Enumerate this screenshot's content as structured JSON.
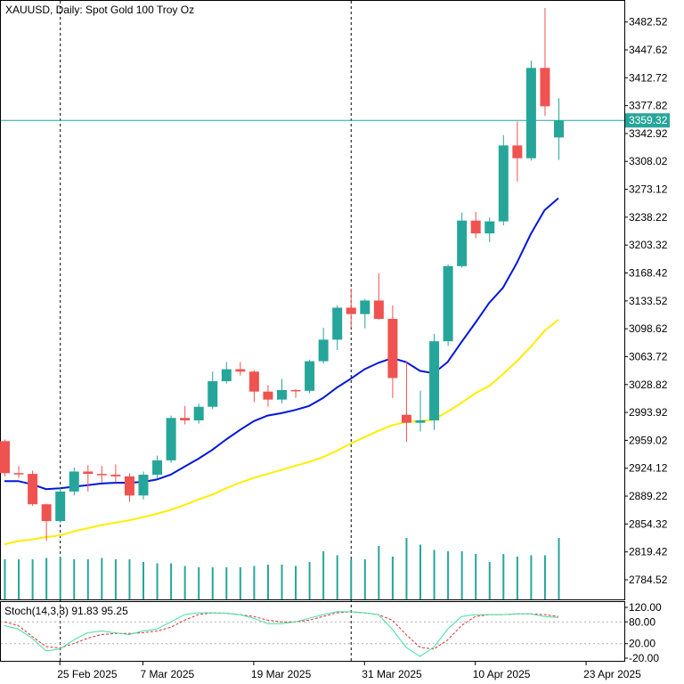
{
  "chart_data": {
    "type": "candlestick",
    "title": "XAUUSD, Daily:  Spot Gold 100 Troy Oz",
    "current_price_label": "3359.32",
    "current_price": 3359.32,
    "price_range": [
      2760,
      3510
    ],
    "price_ticks": [
      "3482.52",
      "3447.62",
      "3412.72",
      "3377.82",
      "3342.92",
      "3308.02",
      "3273.12",
      "3238.22",
      "3203.32",
      "3168.42",
      "3133.52",
      "3098.62",
      "3063.72",
      "3028.82",
      "2993.92",
      "2959.02",
      "2924.12",
      "2889.22",
      "2854.32",
      "2819.42",
      "2784.52"
    ],
    "price_tick_values": [
      3482.52,
      3447.62,
      3412.72,
      3377.82,
      3342.92,
      3308.02,
      3273.12,
      3238.22,
      3203.32,
      3168.42,
      3133.52,
      3098.62,
      3063.72,
      3028.82,
      2993.92,
      2959.02,
      2924.12,
      2889.22,
      2854.32,
      2819.42,
      2784.52
    ],
    "date_labels": [
      {
        "index": 4,
        "label": "25 Feb 2025"
      },
      {
        "index": 10,
        "label": "7 Mar 2025"
      },
      {
        "index": 18,
        "label": "19 Mar 2025"
      },
      {
        "index": 26,
        "label": "31 Mar 2025"
      },
      {
        "index": 34,
        "label": "10 Apr 2025"
      },
      {
        "index": 42,
        "label": "23 Apr 2025"
      }
    ],
    "separators": [
      4,
      25
    ],
    "candles": [
      {
        "o": 2958,
        "h": 2960,
        "l": 2914,
        "c": 2918
      },
      {
        "o": 2918,
        "h": 2927,
        "l": 2912,
        "c": 2917
      },
      {
        "o": 2917,
        "h": 2921,
        "l": 2877,
        "c": 2879
      },
      {
        "o": 2879,
        "h": 2880,
        "l": 2833,
        "c": 2858
      },
      {
        "o": 2858,
        "h": 2900,
        "l": 2856,
        "c": 2895
      },
      {
        "o": 2895,
        "h": 2925,
        "l": 2890,
        "c": 2920
      },
      {
        "o": 2920,
        "h": 2928,
        "l": 2895,
        "c": 2917
      },
      {
        "o": 2917,
        "h": 2927,
        "l": 2906,
        "c": 2916
      },
      {
        "o": 2916,
        "h": 2929,
        "l": 2906,
        "c": 2914
      },
      {
        "o": 2914,
        "h": 2918,
        "l": 2882,
        "c": 2890
      },
      {
        "o": 2890,
        "h": 2920,
        "l": 2885,
        "c": 2916
      },
      {
        "o": 2916,
        "h": 2940,
        "l": 2911,
        "c": 2934
      },
      {
        "o": 2934,
        "h": 2990,
        "l": 2931,
        "c": 2987
      },
      {
        "o": 2987,
        "h": 3002,
        "l": 2979,
        "c": 2984
      },
      {
        "o": 2984,
        "h": 3005,
        "l": 2980,
        "c": 3001
      },
      {
        "o": 3001,
        "h": 3045,
        "l": 2998,
        "c": 3033
      },
      {
        "o": 3033,
        "h": 3057,
        "l": 3030,
        "c": 3048
      },
      {
        "o": 3048,
        "h": 3057,
        "l": 3040,
        "c": 3045
      },
      {
        "o": 3045,
        "h": 3047,
        "l": 3007,
        "c": 3020
      },
      {
        "o": 3020,
        "h": 3028,
        "l": 3001,
        "c": 3010
      },
      {
        "o": 3010,
        "h": 3036,
        "l": 3005,
        "c": 3022
      },
      {
        "o": 3022,
        "h": 3023,
        "l": 3012,
        "c": 3021
      },
      {
        "o": 3021,
        "h": 3060,
        "l": 3018,
        "c": 3058
      },
      {
        "o": 3058,
        "h": 3100,
        "l": 3055,
        "c": 3085
      },
      {
        "o": 3085,
        "h": 3128,
        "l": 3072,
        "c": 3125
      },
      {
        "o": 3125,
        "h": 3149,
        "l": 3100,
        "c": 3117
      },
      {
        "o": 3117,
        "h": 3136,
        "l": 3099,
        "c": 3134
      },
      {
        "o": 3134,
        "h": 3168,
        "l": 3110,
        "c": 3111
      },
      {
        "o": 3111,
        "h": 3128,
        "l": 3012,
        "c": 3037
      },
      {
        "o": 2991,
        "h": 3058,
        "l": 2957,
        "c": 2981
      },
      {
        "o": 2981,
        "h": 3021,
        "l": 2970,
        "c": 2984
      },
      {
        "o": 2984,
        "h": 3092,
        "l": 2972,
        "c": 3083
      },
      {
        "o": 3083,
        "h": 3179,
        "l": 3077,
        "c": 3177
      },
      {
        "o": 3177,
        "h": 3244,
        "l": 3175,
        "c": 3234
      },
      {
        "o": 3234,
        "h": 3245,
        "l": 3212,
        "c": 3218
      },
      {
        "o": 3218,
        "h": 3238,
        "l": 3207,
        "c": 3233
      },
      {
        "o": 3233,
        "h": 3341,
        "l": 3228,
        "c": 3328
      },
      {
        "o": 3328,
        "h": 3358,
        "l": 3283,
        "c": 3312
      },
      {
        "o": 3312,
        "h": 3434,
        "l": 3309,
        "c": 3425
      },
      {
        "o": 3425,
        "h": 3500,
        "l": 3365,
        "c": 3377
      },
      {
        "o": 3338,
        "h": 3387,
        "l": 3310,
        "c": 3359
      }
    ],
    "ma_fast": [
      2908,
      2908,
      2904,
      2898,
      2899,
      2901,
      2903,
      2905,
      2906,
      2906,
      2907,
      2910,
      2916,
      2926,
      2936,
      2947,
      2960,
      2972,
      2983,
      2990,
      2993,
      2997,
      3002,
      3012,
      3025,
      3036,
      3048,
      3056,
      3062,
      3057,
      3046,
      3043,
      3057,
      3082,
      3106,
      3131,
      3150,
      3181,
      3217,
      3247,
      3262
    ],
    "ma_slow": [
      2829,
      2833,
      2835,
      2838,
      2840,
      2845,
      2849,
      2853,
      2856,
      2859,
      2863,
      2867,
      2872,
      2878,
      2885,
      2891,
      2899,
      2906,
      2912,
      2917,
      2922,
      2927,
      2932,
      2938,
      2946,
      2955,
      2963,
      2971,
      2978,
      2982,
      2983,
      2985,
      2995,
      3006,
      3018,
      3027,
      3042,
      3058,
      3076,
      3096,
      3110
    ],
    "volume": [
      0.3,
      0.3,
      0.3,
      0.31,
      0.32,
      0.3,
      0.3,
      0.31,
      0.3,
      0.3,
      0.28,
      0.27,
      0.27,
      0.25,
      0.24,
      0.24,
      0.24,
      0.24,
      0.25,
      0.26,
      0.26,
      0.25,
      0.28,
      0.36,
      0.33,
      0.3,
      0.3,
      0.4,
      0.32,
      0.46,
      0.41,
      0.37,
      0.36,
      0.36,
      0.34,
      0.28,
      0.34,
      0.32,
      0.33,
      0.33,
      0.46
    ],
    "stoch": {
      "label": "Stoch(14,3,3) 91.83 95.25",
      "levels": [
        "120.00",
        "80.00",
        "20.00",
        "-20.00"
      ],
      "k": [
        70,
        60,
        35,
        0,
        5,
        30,
        50,
        55,
        50,
        45,
        55,
        60,
        80,
        100,
        105,
        105,
        104,
        100,
        90,
        75,
        75,
        80,
        90,
        100,
        108,
        108,
        105,
        100,
        60,
        10,
        -15,
        10,
        60,
        95,
        100,
        100,
        100,
        102,
        102,
        95,
        92
      ],
      "d": [
        80,
        70,
        40,
        12,
        8,
        20,
        35,
        45,
        48,
        48,
        50,
        55,
        65,
        85,
        100,
        105,
        104,
        100,
        95,
        85,
        80,
        80,
        85,
        95,
        105,
        108,
        105,
        100,
        85,
        45,
        10,
        5,
        30,
        70,
        95,
        100,
        100,
        102,
        102,
        100,
        95
      ]
    }
  }
}
